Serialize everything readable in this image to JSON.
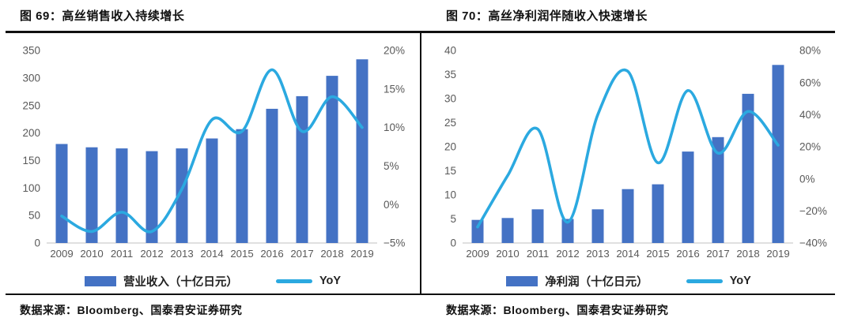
{
  "colors": {
    "bar": "#4472C4",
    "line": "#2BA9E0",
    "axis_text": "#595959",
    "baseline": "#d6d6d6",
    "border": "#101010"
  },
  "chart_data": [
    {
      "type": "bar+line",
      "title": "图 69：高丝销售收入持续增长",
      "source": "数据来源：Bloomberg、国泰君安证券研究",
      "categories": [
        "2009",
        "2010",
        "2011",
        "2012",
        "2013",
        "2014",
        "2015",
        "2016",
        "2017",
        "2018",
        "2019"
      ],
      "series": [
        {
          "name": "营业收入（十亿日元）",
          "type": "bar",
          "axis": "left",
          "values": [
            180,
            174,
            172,
            167,
            172,
            190,
            207,
            244,
            267,
            304,
            334
          ]
        },
        {
          "name": "YoY",
          "type": "line",
          "axis": "right",
          "values": [
            -1.5,
            -3.5,
            -1.0,
            -3.5,
            2.0,
            11.0,
            9.5,
            17.5,
            9.5,
            14.0,
            10.0
          ]
        }
      ],
      "left_axis": {
        "min": 0,
        "max": 350,
        "step": 50,
        "ticks": [
          "0",
          "50",
          "100",
          "150",
          "200",
          "250",
          "300",
          "350"
        ]
      },
      "right_axis": {
        "min": -5,
        "max": 20,
        "step": 5,
        "format": "percent",
        "ticks": [
          "−5%",
          "0%",
          "5%",
          "10%",
          "15%",
          "20%"
        ]
      },
      "grid": false,
      "legend_position": "bottom"
    },
    {
      "type": "bar+line",
      "title": "图 70：高丝净利润伴随收入快速增长",
      "source": "数据来源：Bloomberg、国泰君安证券研究",
      "categories": [
        "2009",
        "2010",
        "2011",
        "2012",
        "2013",
        "2014",
        "2015",
        "2016",
        "2017",
        "2018",
        "2019"
      ],
      "series": [
        {
          "name": "净利润（十亿日元）",
          "type": "bar",
          "axis": "left",
          "values": [
            4.8,
            5.2,
            7.0,
            5.0,
            7.0,
            11.2,
            12.2,
            19.0,
            22.0,
            31.0,
            37.0
          ]
        },
        {
          "name": "YoY",
          "type": "line",
          "axis": "right",
          "values": [
            -30,
            2,
            31,
            -27,
            40,
            67,
            10,
            55,
            16,
            42,
            21
          ]
        }
      ],
      "left_axis": {
        "min": 0,
        "max": 40,
        "step": 5,
        "ticks": [
          "0",
          "5",
          "10",
          "15",
          "20",
          "25",
          "30",
          "35",
          "40"
        ]
      },
      "right_axis": {
        "min": -40,
        "max": 80,
        "step": 20,
        "format": "percent",
        "ticks": [
          "−40%",
          "−20%",
          "0%",
          "20%",
          "40%",
          "60%",
          "80%"
        ]
      },
      "grid": false,
      "legend_position": "bottom"
    }
  ]
}
